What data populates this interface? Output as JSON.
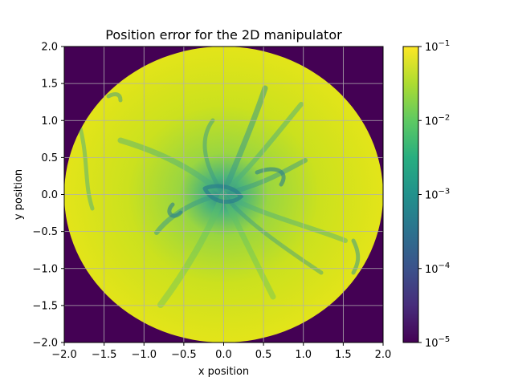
{
  "chart_data": {
    "type": "heatmap",
    "title": "Position error for the 2D manipulator",
    "xlabel": "x position",
    "ylabel": "y position",
    "xlim": [
      -2.0,
      2.0
    ],
    "ylim": [
      -2.0,
      2.0
    ],
    "x_ticks": [
      "−2.0",
      "−1.5",
      "−1.0",
      "−0.5",
      "0.0",
      "0.5",
      "1.0",
      "1.5",
      "2.0"
    ],
    "y_ticks": [
      "2.0",
      "1.5",
      "1.0",
      "0.5",
      "0.0",
      "−0.5",
      "−1.0",
      "−1.5",
      "−2.0"
    ],
    "grid": true,
    "colormap": "viridis",
    "color_scale": "log",
    "color_range": [
      1e-05,
      0.1
    ],
    "workspace_radius": 2.0,
    "outside_value": 1e-05,
    "colorbar": {
      "ticks": [
        {
          "base": "10",
          "exp": "−1"
        },
        {
          "base": "10",
          "exp": "−2"
        },
        {
          "base": "10",
          "exp": "−3"
        },
        {
          "base": "10",
          "exp": "−4"
        },
        {
          "base": "10",
          "exp": "−5"
        }
      ]
    },
    "colors": {
      "outside": "#440154",
      "grid": "#b0b0b0",
      "high": "#fde725",
      "mid_high": "#b5de2b",
      "mid": "#35b779",
      "low": "#26828e"
    }
  }
}
